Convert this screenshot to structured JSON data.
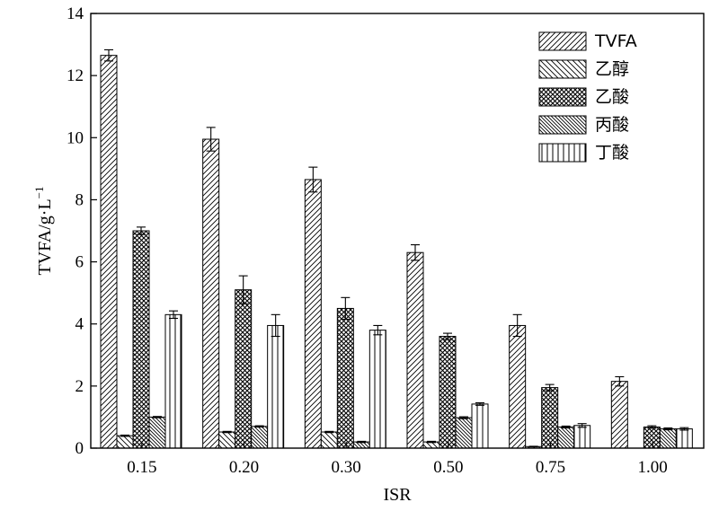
{
  "chart_data": {
    "type": "bar",
    "title": "",
    "xlabel": "ISR",
    "ylabel_main": "TVFA/g·L",
    "ylabel_sup": "−1",
    "ylim": [
      0,
      14
    ],
    "yticks": [
      0,
      2,
      4,
      6,
      8,
      10,
      12,
      14
    ],
    "categories": [
      "0.15",
      "0.20",
      "0.30",
      "0.50",
      "0.75",
      "1.00"
    ],
    "legend_position": "top-right",
    "series": [
      {
        "name": "TVFA",
        "pattern": "diag-right",
        "values": [
          12.65,
          9.95,
          8.65,
          6.3,
          3.95,
          2.15
        ],
        "errors": [
          0.18,
          0.38,
          0.4,
          0.25,
          0.35,
          0.15
        ]
      },
      {
        "name": "乙醇",
        "pattern": "diag-left",
        "values": [
          0.4,
          0.52,
          0.52,
          0.2,
          0.05,
          0.0
        ],
        "errors": [
          0.02,
          0.02,
          0.02,
          0.02,
          0.01,
          0.0
        ]
      },
      {
        "name": "乙酸",
        "pattern": "crosshatch",
        "values": [
          7.0,
          5.1,
          4.5,
          3.6,
          1.95,
          0.68
        ],
        "errors": [
          0.12,
          0.45,
          0.35,
          0.1,
          0.1,
          0.04
        ]
      },
      {
        "name": "丙酸",
        "pattern": "dense-diag-left",
        "values": [
          1.0,
          0.7,
          0.2,
          0.98,
          0.68,
          0.62
        ],
        "errors": [
          0.02,
          0.02,
          0.02,
          0.03,
          0.03,
          0.03
        ]
      },
      {
        "name": "丁酸",
        "pattern": "vertical",
        "values": [
          4.3,
          3.95,
          3.8,
          1.42,
          0.73,
          0.62
        ],
        "errors": [
          0.12,
          0.35,
          0.15,
          0.04,
          0.06,
          0.04
        ]
      }
    ]
  }
}
